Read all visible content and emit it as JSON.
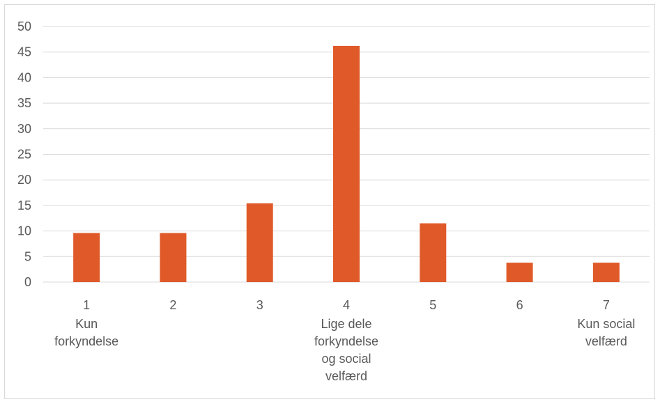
{
  "chart_data": {
    "type": "bar",
    "categories": [
      "1",
      "2",
      "3",
      "4",
      "5",
      "6",
      "7"
    ],
    "category_sublabels": [
      [
        "Kun",
        "forkyndelse"
      ],
      [],
      [],
      [
        "Lige dele",
        "forkyndelse",
        "og social",
        "velfærd"
      ],
      [],
      [],
      [
        "Kun social",
        "velfærd"
      ]
    ],
    "values": [
      9.6,
      9.6,
      15.4,
      46.2,
      11.5,
      3.8,
      3.8
    ],
    "yticks": [
      "0",
      "5",
      "10",
      "15",
      "20",
      "25",
      "30",
      "35",
      "40",
      "45",
      "50"
    ],
    "ylim": [
      0,
      50
    ],
    "grid": true,
    "legend": "none",
    "bar_color": "#e05a29",
    "grid_color": "#d9d9d9"
  }
}
